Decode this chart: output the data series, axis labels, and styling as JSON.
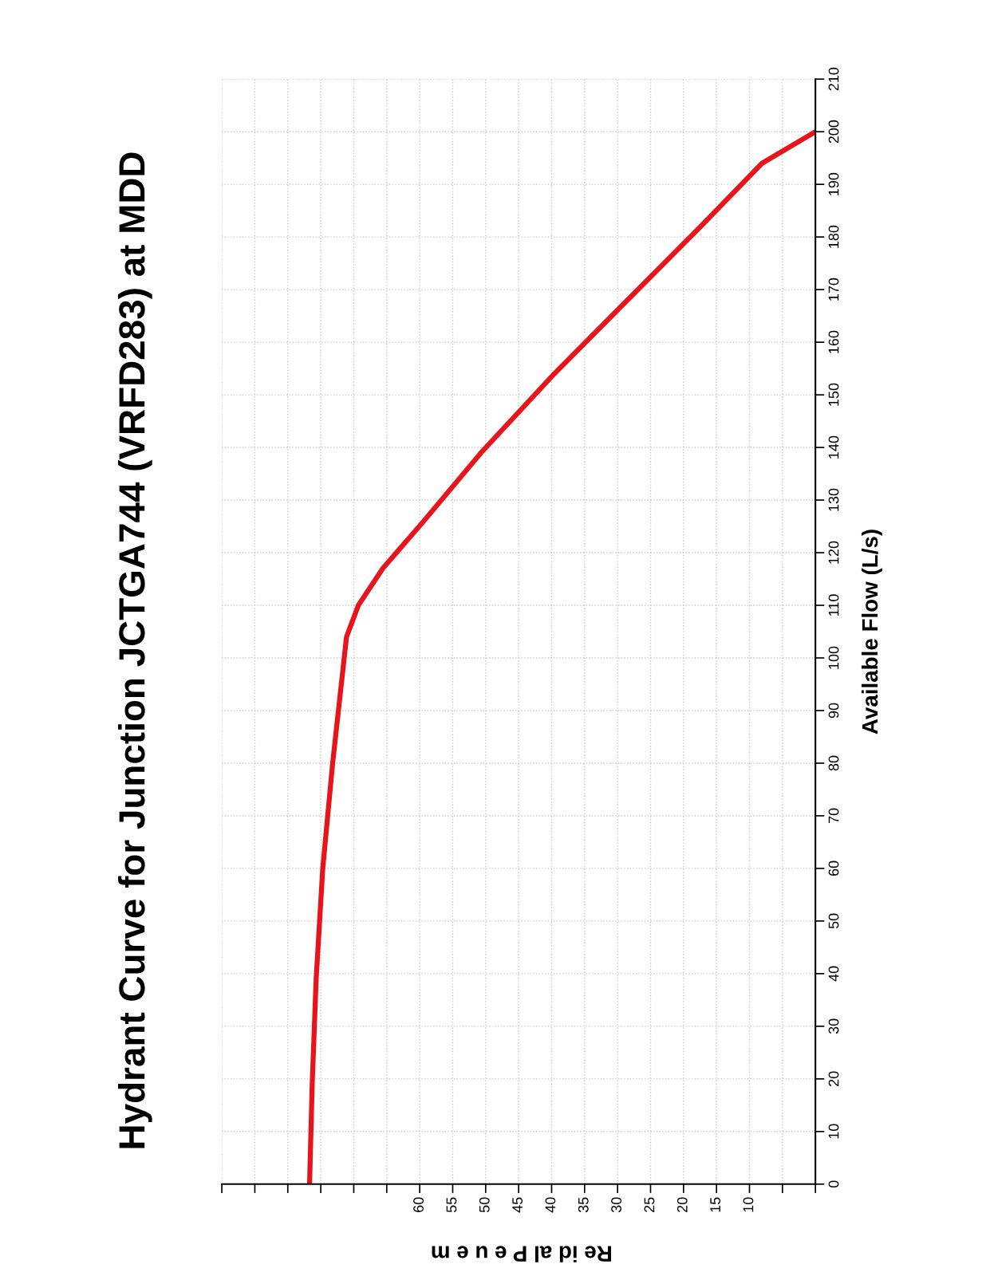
{
  "chart_data": {
    "type": "line",
    "title": "Hydrant Curve for Junction JCTGA744 (VRFD283) at MDD",
    "xlabel": "Re id al P e u e m",
    "ylabel": "Available Flow (L/s)",
    "x": [
      76.7,
      76.3,
      75.7,
      74.7,
      73.2,
      71.1,
      69.3,
      65.6,
      59.4,
      50.7,
      39.6,
      28.5,
      17.4,
      8.1,
      0
    ],
    "series": [
      {
        "color": "#e8141c",
        "values": [
          0,
          19,
          39,
          60,
          80,
          104,
          110,
          117,
          126,
          139,
          154,
          168,
          182,
          194,
          200
        ]
      }
    ],
    "ylim": [
      0,
      210
    ],
    "yticks": [
      0,
      10,
      20,
      30,
      40,
      50,
      60,
      70,
      80,
      90,
      100,
      110,
      120,
      130,
      140,
      150,
      160,
      170,
      180,
      190,
      200,
      210
    ],
    "xlim": [
      90,
      0
    ],
    "xticks": [
      {
        "value": 90,
        "label": null
      },
      {
        "value": 85,
        "label": null
      },
      {
        "value": 80,
        "label": null
      },
      {
        "value": 75,
        "label": null
      },
      {
        "value": 70,
        "label": null
      },
      {
        "value": 65,
        "label": null
      },
      60,
      55,
      50,
      45,
      40,
      35,
      30,
      25,
      20,
      15,
      10,
      {
        "value": 5,
        "label": null
      },
      {
        "value": 0,
        "label": null
      }
    ],
    "grid": true,
    "line_style": "solid",
    "marker": "none"
  }
}
